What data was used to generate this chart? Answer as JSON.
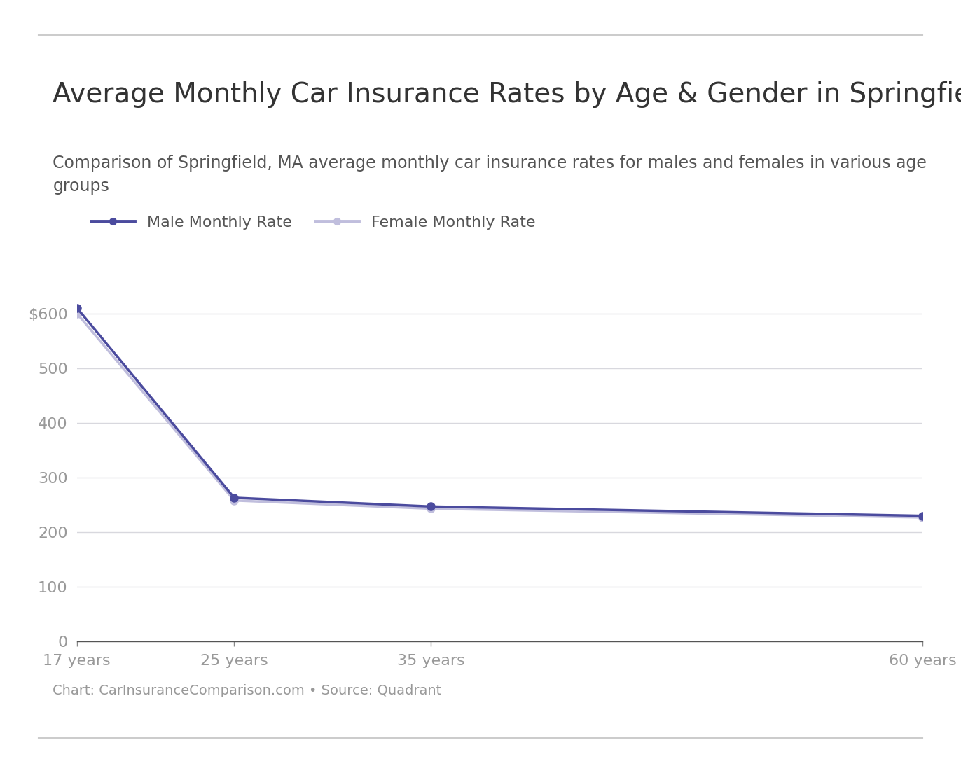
{
  "title": "Average Monthly Car Insurance Rates by Age & Gender in Springfield, MA",
  "subtitle": "Comparison of Springfield, MA average monthly car insurance rates for males and females in various age\ngroups",
  "footer": "Chart: CarInsuranceComparison.com • Source: Quadrant",
  "ages": [
    17,
    25,
    35,
    60
  ],
  "age_labels": [
    "17 years",
    "25 years",
    "35 years",
    "60 years"
  ],
  "male_rates": [
    610,
    263,
    247,
    230
  ],
  "female_rates": [
    600,
    258,
    243,
    227
  ],
  "male_color": "#4b4b9e",
  "female_color": "#c0bedd",
  "male_label": "Male Monthly Rate",
  "female_label": "Female Monthly Rate",
  "background_color": "#ffffff",
  "grid_color": "#d8d8de",
  "tick_label_color": "#999999",
  "text_color": "#333333",
  "subtitle_color": "#555555",
  "footer_color": "#999999",
  "ylim": [
    0,
    650
  ],
  "yticks": [
    0,
    100,
    200,
    300,
    400,
    500,
    600
  ],
  "ytick_labels": [
    "0",
    "100",
    "200",
    "300",
    "400",
    "500",
    "$600"
  ],
  "line_width": 2.5,
  "marker_size": 8,
  "title_fontsize": 28,
  "subtitle_fontsize": 17,
  "footer_fontsize": 14,
  "tick_fontsize": 16,
  "legend_fontsize": 16,
  "border_color": "#cccccc"
}
